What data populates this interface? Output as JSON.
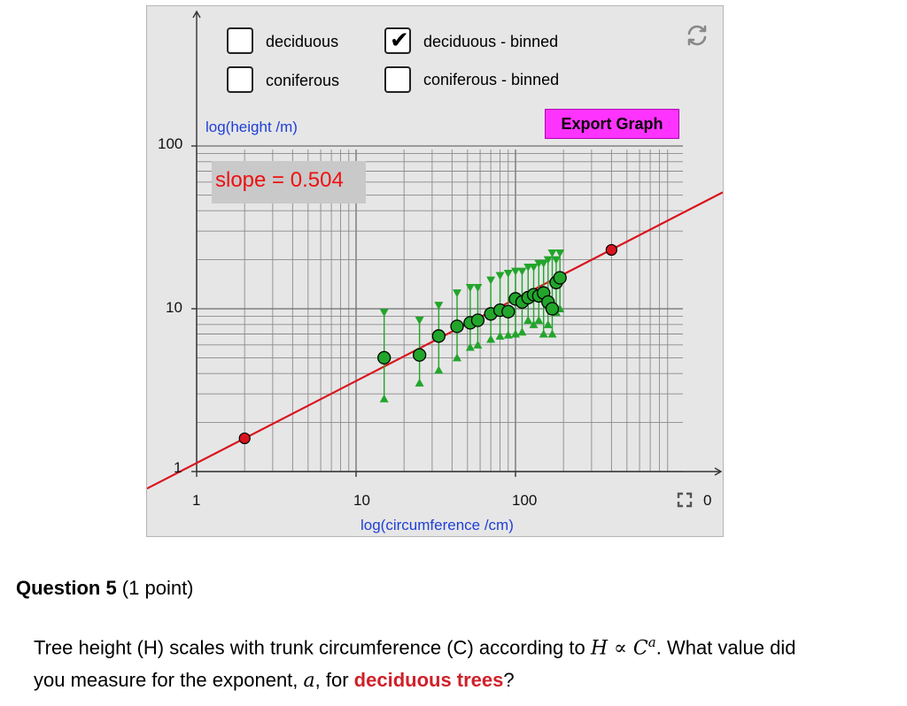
{
  "graph": {
    "checkboxes": [
      {
        "label": "deciduous",
        "checked": false
      },
      {
        "label": "deciduous - binned",
        "checked": true
      },
      {
        "label": "coniferous",
        "checked": false
      },
      {
        "label": "coniferous - binned",
        "checked": false
      }
    ],
    "export_label": "Export Graph",
    "y_axis_label": "log(height /m)",
    "x_axis_label": "log(circumference /cm)",
    "slope_text": "slope = 0.504",
    "y_tick_labels": [
      "100",
      "10",
      "1"
    ],
    "x_tick_labels": [
      "1",
      "10",
      "100"
    ],
    "x_tick_partial": "0",
    "icons": [
      "refresh-icon",
      "fullscreen-icon",
      "checkmark-icon"
    ],
    "colors": {
      "fit_line": "#d9141e",
      "data": "#22a52b",
      "endpoint": "#d9141e",
      "export_button": "#ff33ff",
      "axis_labels": "#1f3fd6"
    }
  },
  "chart_data": {
    "type": "scatter",
    "x_scale": "log",
    "y_scale": "log",
    "x_range": [
      1,
      1000
    ],
    "y_range": [
      1,
      100
    ],
    "fit": {
      "slope": 0.504,
      "through": [
        [
          2,
          1.6
        ],
        [
          400,
          23
        ]
      ]
    },
    "series": [
      {
        "name": "deciduous - binned",
        "points": [
          {
            "x": 15,
            "y": 5.0,
            "hi": 9.5,
            "lo": 2.8
          },
          {
            "x": 25,
            "y": 5.2,
            "hi": 8.5,
            "lo": 3.5
          },
          {
            "x": 33,
            "y": 6.8,
            "hi": 10.5,
            "lo": 4.2
          },
          {
            "x": 43,
            "y": 7.8,
            "hi": 12.5,
            "lo": 5.0
          },
          {
            "x": 52,
            "y": 8.2,
            "hi": 13.5,
            "lo": 5.8
          },
          {
            "x": 58,
            "y": 8.5,
            "hi": 13.5,
            "lo": 6.0
          },
          {
            "x": 70,
            "y": 9.3,
            "hi": 15,
            "lo": 6.5
          },
          {
            "x": 80,
            "y": 9.8,
            "hi": 16,
            "lo": 6.8
          },
          {
            "x": 90,
            "y": 9.6,
            "hi": 16.5,
            "lo": 6.9
          },
          {
            "x": 100,
            "y": 11.5,
            "hi": 17,
            "lo": 7.0
          },
          {
            "x": 110,
            "y": 11.0,
            "hi": 17,
            "lo": 7.2
          },
          {
            "x": 120,
            "y": 11.7,
            "hi": 18,
            "lo": 8.5
          },
          {
            "x": 130,
            "y": 12.2,
            "hi": 18,
            "lo": 8.0
          },
          {
            "x": 140,
            "y": 12.0,
            "hi": 19,
            "lo": 8.5
          },
          {
            "x": 150,
            "y": 12.5,
            "hi": 19,
            "lo": 7.0
          },
          {
            "x": 160,
            "y": 11.0,
            "hi": 20,
            "lo": 8.0
          },
          {
            "x": 170,
            "y": 10.0,
            "hi": 22,
            "lo": 7.0
          },
          {
            "x": 180,
            "y": 14.5,
            "hi": 20,
            "lo": 9.5
          },
          {
            "x": 190,
            "y": 15.5,
            "hi": 22,
            "lo": 10.0
          }
        ]
      }
    ]
  },
  "question": {
    "title_bold": "Question 5",
    "title_rest": " (1 point)",
    "text_before": "Tree height (H) scales with trunk circumference (C) according to ",
    "formula_H": "H",
    "formula_prop": " ∝ ",
    "formula_C": "C",
    "formula_exp": "a",
    "text_mid": ". What value did you measure for the exponent, ",
    "var_a": "a",
    "text_for": ", for ",
    "highlight": "deciduous trees",
    "text_end": "?"
  }
}
